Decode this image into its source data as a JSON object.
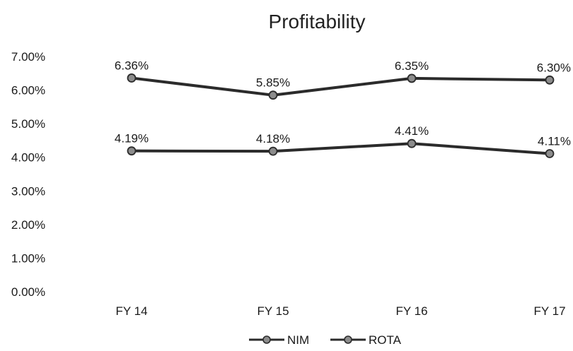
{
  "chart_data": {
    "type": "line",
    "title": "Profitability",
    "xlabel": "",
    "ylabel": "",
    "categories": [
      "FY 14",
      "FY 15",
      "FY 16",
      "FY 17"
    ],
    "series": [
      {
        "name": "NIM",
        "values": [
          4.19,
          4.18,
          4.41,
          4.11
        ],
        "labels": [
          "4.19%",
          "4.18%",
          "4.41%",
          "4.11%"
        ]
      },
      {
        "name": "ROTA",
        "values": [
          6.36,
          5.85,
          6.35,
          6.3
        ],
        "labels": [
          "6.36%",
          "5.85%",
          "6.35%",
          "6.30%"
        ]
      }
    ],
    "ylim": [
      0,
      7
    ],
    "yticks": [
      7,
      6,
      5,
      4,
      3,
      2,
      1,
      0
    ],
    "ytick_labels": [
      "7.00%",
      "6.00%",
      "5.00%",
      "4.00%",
      "3.00%",
      "2.00%",
      "1.00%",
      "0.00%"
    ],
    "grid": false,
    "legend": "bottom",
    "colors": {
      "line": "#2b2b2b",
      "marker_fill": "#8c8c8c",
      "text": "#1a1a1a"
    }
  }
}
